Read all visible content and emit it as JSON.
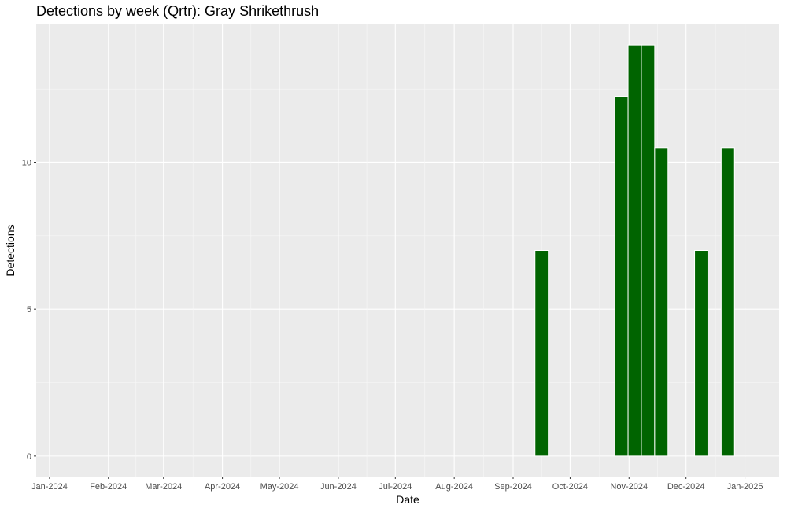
{
  "chart_data": {
    "type": "bar",
    "title": "Detections by week (Qrtr): Gray Shrikethrush",
    "xlabel": "Date",
    "ylabel": "Detections",
    "x_type": "date",
    "xlim": [
      "2023-12-25",
      "2025-01-19"
    ],
    "ylim": [
      0,
      14
    ],
    "x_ticks": [
      {
        "date": "2024-01-01",
        "label": "Jan-2024"
      },
      {
        "date": "2024-02-01",
        "label": "Feb-2024"
      },
      {
        "date": "2024-03-01",
        "label": "Mar-2024"
      },
      {
        "date": "2024-04-01",
        "label": "Apr-2024"
      },
      {
        "date": "2024-05-01",
        "label": "May-2024"
      },
      {
        "date": "2024-06-01",
        "label": "Jun-2024"
      },
      {
        "date": "2024-07-01",
        "label": "Jul-2024"
      },
      {
        "date": "2024-08-01",
        "label": "Aug-2024"
      },
      {
        "date": "2024-09-01",
        "label": "Sep-2024"
      },
      {
        "date": "2024-10-01",
        "label": "Oct-2024"
      },
      {
        "date": "2024-11-01",
        "label": "Nov-2024"
      },
      {
        "date": "2024-12-01",
        "label": "Dec-2024"
      },
      {
        "date": "2025-01-01",
        "label": "Jan-2025"
      }
    ],
    "y_ticks": [
      0,
      5,
      10
    ],
    "grid": true,
    "bar_color": "#006400",
    "panel_color": "#ebebeb",
    "bars": [
      {
        "week": "2024-09-16",
        "value": 7
      },
      {
        "week": "2024-10-28",
        "value": 12.25
      },
      {
        "week": "2024-11-04",
        "value": 14
      },
      {
        "week": "2024-11-11",
        "value": 14
      },
      {
        "week": "2024-11-18",
        "value": 10.5
      },
      {
        "week": "2024-12-09",
        "value": 7
      },
      {
        "week": "2024-12-23",
        "value": 10.5
      }
    ]
  }
}
